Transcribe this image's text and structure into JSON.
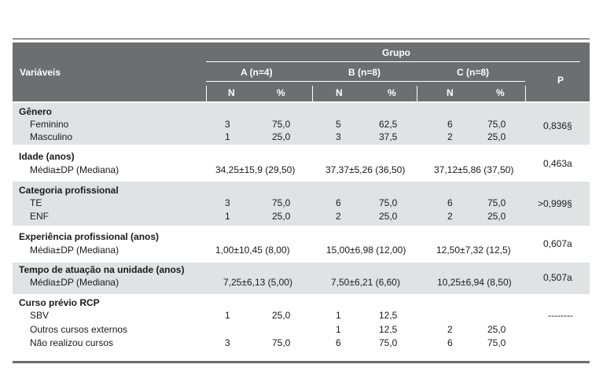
{
  "header": {
    "variables_label": "Variáveis",
    "group_label": "Grupo",
    "groups": [
      "A (n=4)",
      "B (n=8)",
      "C (n=8)"
    ],
    "p_label": "P",
    "n_label": "N",
    "pct_label": "%"
  },
  "sections": [
    {
      "title": "Gênero",
      "rows": [
        {
          "label": "Feminino",
          "a_n": "3",
          "a_p": "75,0",
          "b_n": "5",
          "b_p": "62,5",
          "c_n": "6",
          "c_p": "75,0"
        },
        {
          "label": "Masculino",
          "a_n": "1",
          "a_p": "25,0",
          "b_n": "3",
          "b_p": "37,5",
          "c_n": "2",
          "c_p": "25,0"
        }
      ],
      "p": "0,836§"
    },
    {
      "title": "Idade (anos)",
      "rows": [
        {
          "label": "Média±DP (Mediana)",
          "a": "34,25±15,9 (29,50)",
          "b": "37,37±5,26 (36,50)",
          "c": "37,12±5,86 (37,50)"
        }
      ],
      "p": "0,463a"
    },
    {
      "title": "Categoria profissional",
      "rows": [
        {
          "label": "TE",
          "a_n": "3",
          "a_p": "75,0",
          "b_n": "6",
          "b_p": "75,0",
          "c_n": "6",
          "c_p": "75,0"
        },
        {
          "label": "ENF",
          "a_n": "1",
          "a_p": "25,0",
          "b_n": "2",
          "b_p": "25,0",
          "c_n": "2",
          "c_p": "25,0"
        }
      ],
      "p": ">0,999§"
    },
    {
      "title": "Experiência profissional (anos)",
      "rows": [
        {
          "label": "Média±DP (Mediana)",
          "a": "1,00±10,45 (8,00)",
          "b": "15,00±6,98 (12,00)",
          "c": "12,50±7,32 (12,5)"
        }
      ],
      "p": "0,607a"
    },
    {
      "title": "Tempo de atuação na unidade (anos)",
      "rows": [
        {
          "label": "Média±DP (Mediana)",
          "a": "7,25±6,13 (5,00)",
          "b": "7,50±6,21 (6,60)",
          "c": "10,25±6,94 (8,50)"
        }
      ],
      "p": "0,507a"
    },
    {
      "title": "Curso prévio RCP",
      "rows": [
        {
          "label": "SBV",
          "a_n": "1",
          "a_p": "25,0",
          "b_n": "1",
          "b_p": "12,5",
          "c_n": "",
          "c_p": ""
        },
        {
          "label": "Outros cursos externos",
          "a_n": "",
          "a_p": "",
          "b_n": "1",
          "b_p": "12,5",
          "c_n": "2",
          "c_p": "25,0"
        },
        {
          "label": "Não realizou cursos",
          "a_n": "3",
          "a_p": "75,0",
          "b_n": "6",
          "b_p": "75,0",
          "c_n": "6",
          "c_p": "75,0"
        }
      ],
      "p": "--------"
    }
  ]
}
